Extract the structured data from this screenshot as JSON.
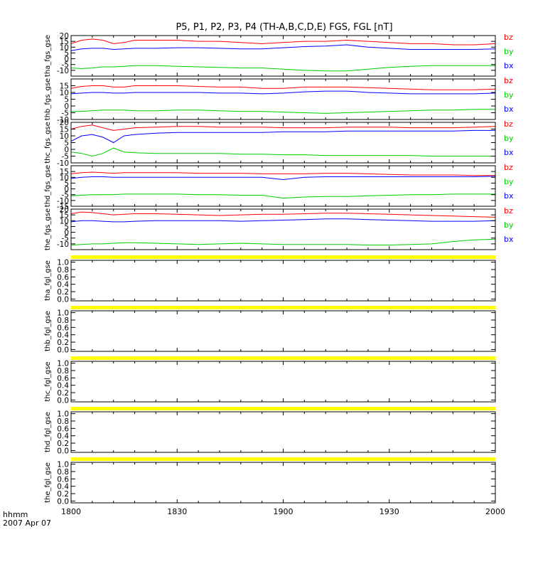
{
  "title": "P5, P1, P2, P3, P4 (TH-A,B,C,D,E) FGS, FGL [nT]",
  "colors": {
    "bx": "#0000ff",
    "by": "#00cc00",
    "bz": "#ff0000",
    "fgl_band": "#ffff00",
    "axis": "#000000"
  },
  "xaxis": {
    "range_minutes": [
      0,
      120
    ],
    "tick_labels": [
      "1800",
      "1830",
      "1900",
      "1930",
      "2000"
    ],
    "label_line1": "hhmm",
    "label_line2": "2007 Apr 07"
  },
  "chart_data": [
    {
      "type": "line",
      "ylabel": "tha_fgs_gse",
      "ylim": [
        -15,
        20
      ],
      "ytick_labels": [
        "20",
        "15",
        "10",
        "5",
        "0",
        "-5",
        "-10"
      ],
      "yticks": [
        20,
        15,
        10,
        5,
        0,
        -5,
        -10
      ],
      "legend": [
        "bz",
        "by",
        "bx"
      ],
      "x": [
        0,
        3,
        6,
        9,
        12,
        15,
        18,
        24,
        30,
        36,
        42,
        48,
        54,
        60,
        66,
        72,
        78,
        84,
        90,
        96,
        102,
        108,
        114,
        120
      ],
      "series": [
        {
          "name": "bz",
          "values": [
            13,
            16,
            17,
            16,
            13,
            14,
            16,
            16,
            16,
            15,
            15,
            14,
            13,
            14,
            15,
            15,
            16,
            15,
            14,
            13,
            13,
            12,
            12,
            13
          ]
        },
        {
          "name": "by",
          "values": [
            -8,
            -8.5,
            -8,
            -7,
            -7,
            -6.5,
            -6,
            -6,
            -6.5,
            -7,
            -7.5,
            -8,
            -8,
            -9,
            -10,
            -10.5,
            -10.5,
            -9,
            -7.5,
            -6.5,
            -6,
            -6,
            -6,
            -6
          ]
        },
        {
          "name": "bx",
          "values": [
            7,
            8.5,
            9,
            9,
            8,
            8.5,
            9,
            9,
            9.5,
            9.5,
            9,
            8.5,
            8.5,
            9.5,
            10.5,
            11,
            12,
            10,
            9,
            8,
            8,
            8,
            8,
            8.5
          ]
        }
      ]
    },
    {
      "type": "line",
      "ylabel": "thb_fgs_gse",
      "ylim": [
        -10,
        20
      ],
      "ytick_labels": [
        "15",
        "10",
        "5",
        "0",
        "-5",
        "-10"
      ],
      "yticks": [
        15,
        10,
        5,
        0,
        -5,
        -10
      ],
      "legend": [
        "bz",
        "by",
        "bx"
      ],
      "x": [
        0,
        3,
        6,
        9,
        12,
        15,
        18,
        24,
        30,
        36,
        42,
        48,
        54,
        60,
        66,
        72,
        78,
        84,
        90,
        96,
        102,
        108,
        114,
        120
      ],
      "series": [
        {
          "name": "bz",
          "values": [
            13,
            14.5,
            15,
            15,
            14,
            14,
            15,
            15,
            15,
            14.5,
            14,
            14,
            13,
            13,
            14,
            14,
            14,
            13.5,
            13,
            12.5,
            12,
            12,
            12,
            12.5
          ]
        },
        {
          "name": "by",
          "values": [
            -4,
            -4,
            -3.5,
            -3,
            -3,
            -3,
            -3.5,
            -3.5,
            -3,
            -3,
            -3.5,
            -4,
            -4,
            -4.5,
            -5,
            -5.5,
            -5,
            -4.5,
            -4,
            -3.5,
            -3,
            -3,
            -2.5,
            -2.5
          ]
        },
        {
          "name": "bx",
          "values": [
            9,
            9.5,
            10,
            10,
            9.5,
            9.5,
            10,
            10,
            10,
            10,
            9.5,
            9.5,
            9,
            9.5,
            10.5,
            11,
            11,
            10,
            9.5,
            9,
            9,
            9,
            9,
            9.5
          ]
        }
      ]
    },
    {
      "type": "line",
      "ylabel": "thc_fgs_gse",
      "ylim": [
        -10,
        20
      ],
      "ytick_labels": [
        "20",
        "15",
        "10",
        "5",
        "0",
        "-5",
        "-10"
      ],
      "yticks": [
        20,
        15,
        10,
        5,
        0,
        -5,
        -10
      ],
      "legend": [
        "bz",
        "by",
        "bx"
      ],
      "x": [
        0,
        3,
        6,
        9,
        12,
        15,
        18,
        24,
        30,
        36,
        42,
        48,
        54,
        60,
        66,
        72,
        78,
        84,
        90,
        96,
        102,
        108,
        114,
        120
      ],
      "series": [
        {
          "name": "bz",
          "values": [
            15,
            17,
            18,
            16,
            14,
            15,
            16,
            16.5,
            17,
            17,
            16.5,
            16.5,
            16.5,
            16,
            16,
            16,
            16.5,
            16.5,
            16.5,
            16,
            16,
            16,
            16.5,
            17
          ]
        },
        {
          "name": "by",
          "values": [
            -2,
            -3,
            -5,
            -3,
            1,
            -2,
            -2.5,
            -3,
            -3,
            -3,
            -3,
            -3.5,
            -3.5,
            -4,
            -4,
            -4.5,
            -4.5,
            -4.5,
            -4.5,
            -4.5,
            -5,
            -5,
            -5,
            -5
          ]
        },
        {
          "name": "bx",
          "values": [
            6,
            10,
            11,
            9,
            5,
            10,
            11,
            12,
            12.5,
            12.5,
            12.5,
            12.5,
            12.5,
            13,
            13,
            13,
            13.5,
            13.5,
            13.5,
            13.5,
            13.5,
            13.5,
            14,
            14
          ]
        }
      ]
    },
    {
      "type": "line",
      "ylabel": "thd_fgs_gse",
      "ylim": [
        -15,
        20
      ],
      "ytick_labels": [
        "15",
        "10",
        "5",
        "0",
        "-5",
        "-10",
        "-15"
      ],
      "yticks": [
        15,
        10,
        5,
        0,
        -5,
        -10,
        -15
      ],
      "legend": [
        "bz",
        "by",
        "bx"
      ],
      "x": [
        0,
        3,
        6,
        9,
        12,
        15,
        18,
        24,
        30,
        36,
        42,
        48,
        54,
        60,
        66,
        72,
        78,
        84,
        90,
        96,
        102,
        108,
        114,
        120
      ],
      "series": [
        {
          "name": "bz",
          "values": [
            13,
            14,
            14.5,
            14,
            13.5,
            14,
            14,
            14,
            14,
            13.5,
            13.5,
            13.5,
            13,
            13,
            13,
            13.5,
            13.5,
            13,
            12.5,
            12,
            12,
            12,
            11.5,
            11.5
          ]
        },
        {
          "name": "by",
          "values": [
            -6,
            -5.5,
            -5,
            -5,
            -5,
            -4.5,
            -4.5,
            -4.5,
            -4.5,
            -5,
            -5,
            -5.5,
            -5.5,
            -8,
            -7,
            -6.5,
            -6.5,
            -6,
            -5.5,
            -5,
            -5,
            -4.5,
            -4.5,
            -4.5
          ]
        },
        {
          "name": "bx",
          "values": [
            9,
            10,
            10.5,
            10.5,
            10,
            10,
            10,
            10,
            10,
            10,
            10,
            10,
            10,
            8,
            10,
            10.5,
            10.5,
            10.5,
            10.5,
            10.5,
            10.5,
            10.5,
            10.5,
            11
          ]
        }
      ]
    },
    {
      "type": "line",
      "ylabel": "the_fgs_gse",
      "ylim": [
        -15,
        20
      ],
      "ytick_labels": [
        "20",
        "15",
        "10",
        "5",
        "0",
        "-5",
        "-10"
      ],
      "yticks": [
        20,
        15,
        10,
        5,
        0,
        -5,
        -10
      ],
      "legend": [
        "bz",
        "by",
        "bx"
      ],
      "x": [
        0,
        3,
        6,
        9,
        12,
        15,
        18,
        24,
        30,
        36,
        42,
        48,
        54,
        60,
        66,
        72,
        78,
        84,
        90,
        96,
        102,
        108,
        114,
        120
      ],
      "series": [
        {
          "name": "bz",
          "values": [
            16,
            17.5,
            17,
            16,
            15,
            15.5,
            16,
            16,
            15.5,
            15,
            14.5,
            15,
            15.5,
            15.5,
            16,
            16.5,
            16.5,
            16,
            15.5,
            15,
            14.5,
            14,
            13.5,
            13
          ]
        },
        {
          "name": "by",
          "values": [
            -11,
            -10.5,
            -10,
            -10,
            -9.5,
            -9,
            -9,
            -9.5,
            -10,
            -10.5,
            -10,
            -9.5,
            -10,
            -10.5,
            -10.5,
            -10.5,
            -10.5,
            -11,
            -11,
            -10.5,
            -10,
            -8,
            -6.5,
            -6
          ]
        },
        {
          "name": "bx",
          "values": [
            9,
            10,
            10,
            9.5,
            9,
            9,
            9.5,
            10,
            10,
            10,
            10,
            9.5,
            10,
            10.5,
            11,
            11.5,
            11.5,
            11,
            10.5,
            10,
            9.5,
            9.5,
            9.5,
            10
          ]
        }
      ]
    },
    {
      "type": "line",
      "ylabel": "tha_fgl_gse",
      "ylim": [
        -0.05,
        1.05
      ],
      "ytick_labels": [
        "1.0",
        "0.8",
        "0.6",
        "0.4",
        "0.2",
        "0.0"
      ],
      "yticks": [
        1.0,
        0.8,
        0.6,
        0.4,
        0.2,
        0.0
      ]
    },
    {
      "type": "line",
      "ylabel": "thb_fgl_gse",
      "ylim": [
        -0.05,
        1.05
      ],
      "ytick_labels": [
        "1.0",
        "0.8",
        "0.6",
        "0.4",
        "0.2",
        "0.0"
      ],
      "yticks": [
        1.0,
        0.8,
        0.6,
        0.4,
        0.2,
        0.0
      ]
    },
    {
      "type": "line",
      "ylabel": "thc_fgl_gse",
      "ylim": [
        -0.05,
        1.05
      ],
      "ytick_labels": [
        "1.0",
        "0.8",
        "0.6",
        "0.4",
        "0.2",
        "0.0"
      ],
      "yticks": [
        1.0,
        0.8,
        0.6,
        0.4,
        0.2,
        0.0
      ]
    },
    {
      "type": "line",
      "ylabel": "thd_fgl_gse",
      "ylim": [
        -0.05,
        1.05
      ],
      "ytick_labels": [
        "1.0",
        "0.8",
        "0.6",
        "0.4",
        "0.2",
        "0.0"
      ],
      "yticks": [
        1.0,
        0.8,
        0.6,
        0.4,
        0.2,
        0.0
      ]
    },
    {
      "type": "line",
      "ylabel": "the_fgl_gse",
      "ylim": [
        -0.05,
        1.05
      ],
      "ytick_labels": [
        "1.0",
        "0.8",
        "0.6",
        "0.4",
        "0.2",
        "0.0"
      ],
      "yticks": [
        1.0,
        0.8,
        0.6,
        0.4,
        0.2,
        0.0
      ]
    }
  ]
}
